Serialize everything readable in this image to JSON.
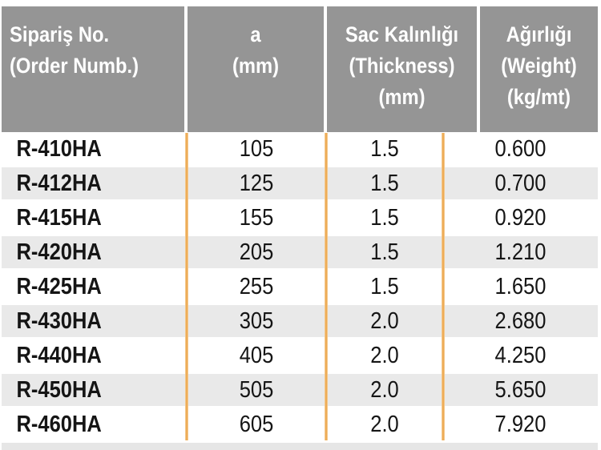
{
  "colors": {
    "header_bg": "#959595",
    "header_text": "#ffffff",
    "stripe_bg": "#e9e9e9",
    "separator_orange": "#ea9f40",
    "body_text": "#151515"
  },
  "table": {
    "headers": [
      {
        "lines": [
          "Sipariş No.",
          "(Order Numb.)"
        ]
      },
      {
        "lines": [
          "a",
          "(mm)"
        ]
      },
      {
        "lines": [
          "Sac Kalınlığı",
          "(Thickness)",
          "(mm)"
        ]
      },
      {
        "lines": [
          "Ağırlığı",
          "(Weight)",
          "(kg/mt)"
        ]
      }
    ],
    "rows": [
      {
        "order_no": "R-410HA",
        "a_mm": "105",
        "thickness_mm": "1.5",
        "weight_kg_mt": "0.600"
      },
      {
        "order_no": "R-412HA",
        "a_mm": "125",
        "thickness_mm": "1.5",
        "weight_kg_mt": "0.700"
      },
      {
        "order_no": "R-415HA",
        "a_mm": "155",
        "thickness_mm": "1.5",
        "weight_kg_mt": "0.920"
      },
      {
        "order_no": "R-420HA",
        "a_mm": "205",
        "thickness_mm": "1.5",
        "weight_kg_mt": "1.210"
      },
      {
        "order_no": "R-425HA",
        "a_mm": "255",
        "thickness_mm": "1.5",
        "weight_kg_mt": "1.650"
      },
      {
        "order_no": "R-430HA",
        "a_mm": "305",
        "thickness_mm": "2.0",
        "weight_kg_mt": "2.680"
      },
      {
        "order_no": "R-440HA",
        "a_mm": "405",
        "thickness_mm": "2.0",
        "weight_kg_mt": "4.250"
      },
      {
        "order_no": "R-450HA",
        "a_mm": "505",
        "thickness_mm": "2.0",
        "weight_kg_mt": "5.650"
      },
      {
        "order_no": "R-460HA",
        "a_mm": "605",
        "thickness_mm": "2.0",
        "weight_kg_mt": "7.920"
      }
    ]
  }
}
